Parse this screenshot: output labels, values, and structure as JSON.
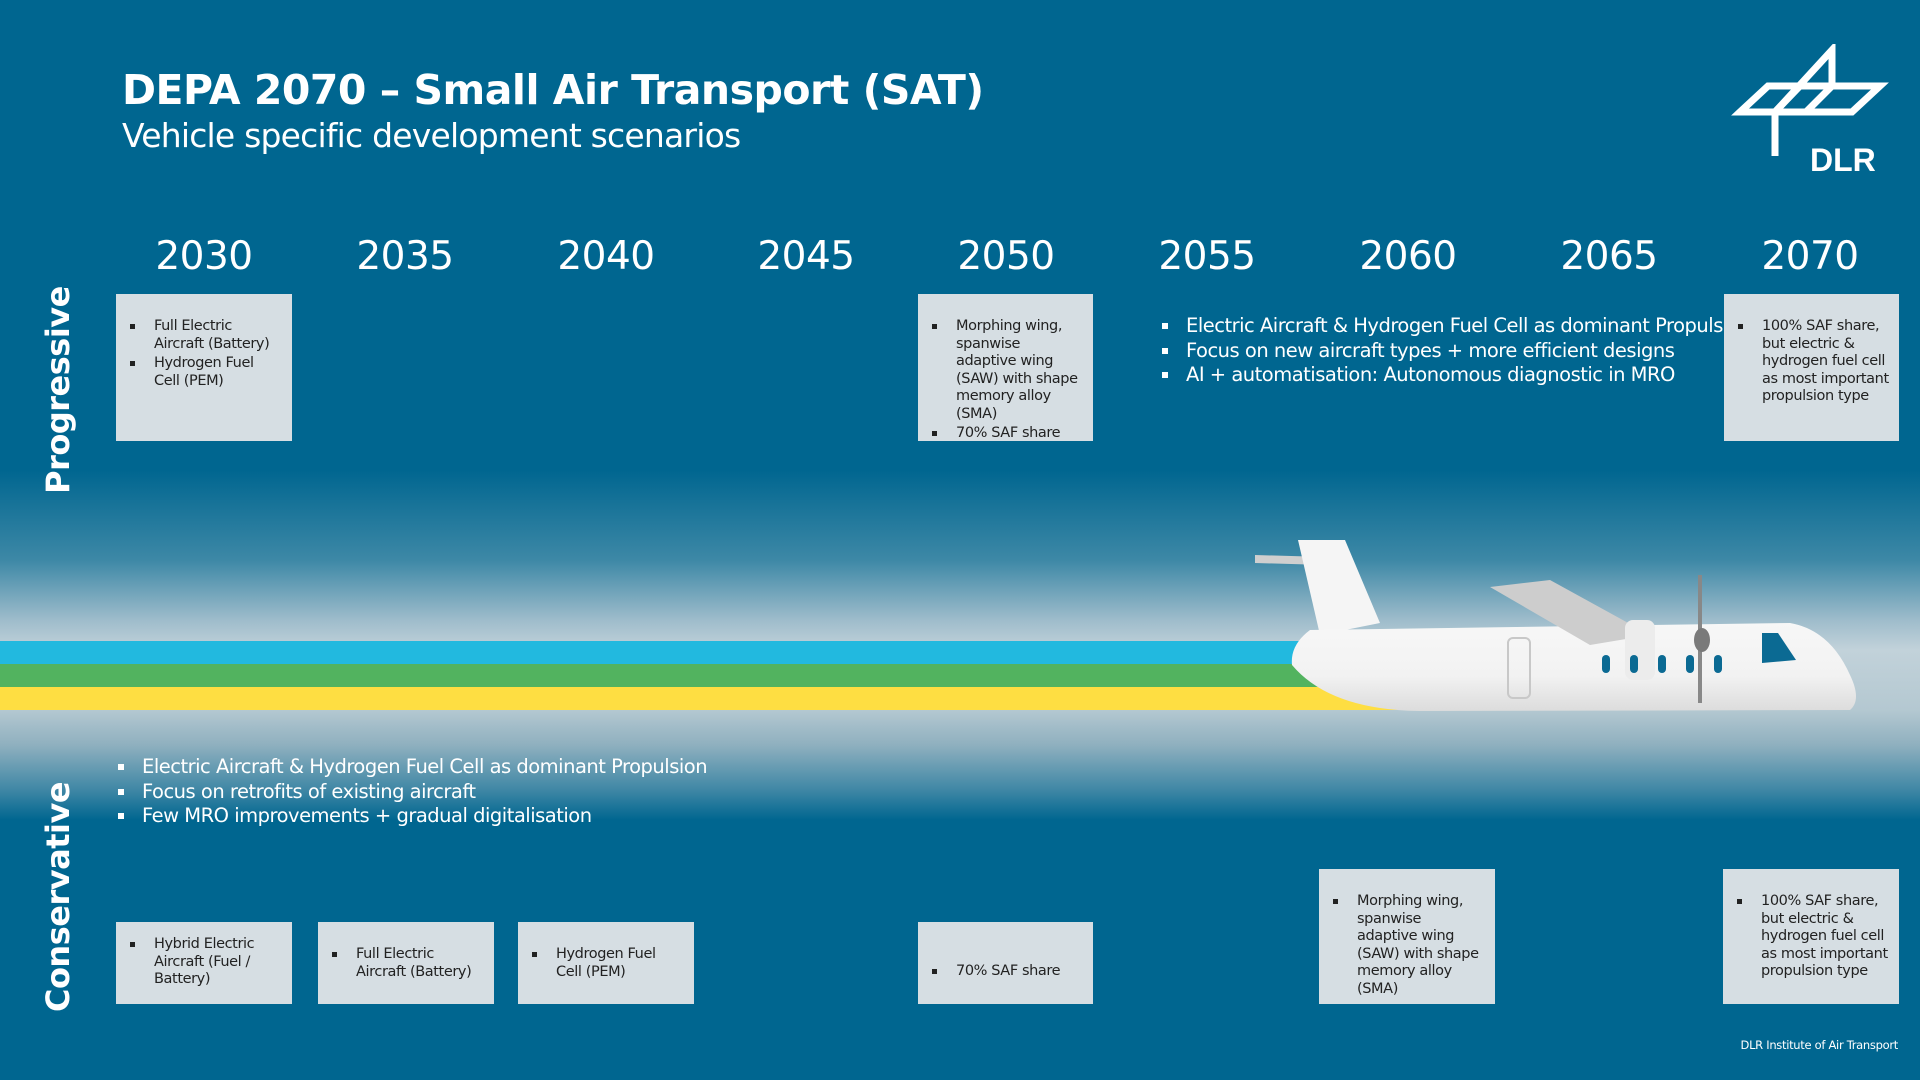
{
  "header": {
    "title": "DEPA 2070 – Small Air Transport (SAT)",
    "subtitle": "Vehicle specific development scenarios"
  },
  "logo": {
    "text": "DLR"
  },
  "years": [
    "2030",
    "2035",
    "2040",
    "2045",
    "2050",
    "2055",
    "2060",
    "2065",
    "2070"
  ],
  "progressive": {
    "label": "Progressive",
    "box_2030": [
      "Full Electric Aircraft (Battery)",
      "Hydrogen Fuel Cell (PEM)"
    ],
    "box_2050": [
      "Morphing wing, spanwise adaptive wing (SAW) with shape memory alloy (SMA)",
      "70% SAF share"
    ],
    "bullets": [
      "Electric Aircraft & Hydrogen Fuel Cell as dominant Propulsion",
      "Focus on new aircraft types + more efficient designs",
      "AI + automatisation: Autonomous diagnostic in MRO"
    ],
    "box_2070": [
      "100% SAF share, but electric & hydrogen fuel cell as most important propulsion type"
    ]
  },
  "conservative": {
    "label": "Conservative",
    "bullets": [
      "Electric Aircraft & Hydrogen Fuel Cell as dominant Propulsion",
      "Focus on retrofits of existing aircraft",
      "Few MRO improvements + gradual digitalisation"
    ],
    "box_2030": [
      "Hybrid Electric Aircraft (Fuel / Battery)"
    ],
    "box_2035": [
      "Full Electric Aircraft (Battery)"
    ],
    "box_2040": [
      "Hydrogen Fuel Cell (PEM)"
    ],
    "box_2050": [
      "70% SAF share"
    ],
    "box_2060": [
      "Morphing wing, spanwise adaptive wing (SAW) with shape memory alloy (SMA)"
    ],
    "box_2070": [
      "100% SAF share, but electric & hydrogen fuel cell as most important propulsion type"
    ]
  },
  "stripes": {
    "blue": "#22b9df",
    "green": "#52b35f",
    "yellow": "#fede42"
  },
  "colors": {
    "background": "#006690",
    "box": "#d6dee3"
  },
  "footer": "DLR Institute of Air Transport"
}
